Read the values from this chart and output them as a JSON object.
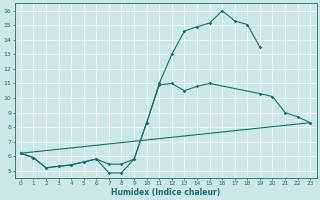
{
  "xlabel": "Humidex (Indice chaleur)",
  "bg_color": "#cce8e5",
  "line_color": "#1e6b6b",
  "grid_color": "#ffffff",
  "line1_x": [
    0,
    1,
    2,
    3,
    4,
    5,
    6,
    7,
    8,
    9,
    10,
    11,
    12,
    13,
    14,
    15,
    16,
    17,
    18,
    19
  ],
  "line1_y": [
    6.2,
    5.9,
    5.2,
    5.3,
    5.4,
    5.6,
    5.8,
    4.85,
    4.85,
    5.8,
    8.3,
    11.0,
    13.0,
    14.6,
    14.9,
    15.15,
    16.0,
    15.3,
    15.05,
    13.5
  ],
  "line2_x": [
    0,
    1,
    2,
    3,
    4,
    5,
    6,
    7,
    8,
    9,
    10,
    11,
    12,
    13,
    14,
    15,
    19,
    20,
    21,
    22,
    23
  ],
  "line2_y": [
    6.2,
    5.9,
    5.2,
    5.3,
    5.4,
    5.6,
    5.8,
    5.45,
    5.45,
    5.8,
    8.3,
    10.9,
    11.0,
    10.5,
    10.8,
    11.0,
    10.3,
    10.1,
    9.0,
    8.7,
    8.3
  ],
  "line3_x": [
    0,
    23
  ],
  "line3_y": [
    6.2,
    8.3
  ],
  "xlim": [
    -0.5,
    23.5
  ],
  "ylim": [
    4.5,
    16.5
  ],
  "yticks": [
    5,
    6,
    7,
    8,
    9,
    10,
    11,
    12,
    13,
    14,
    15,
    16
  ],
  "xticks": [
    0,
    1,
    2,
    3,
    4,
    5,
    6,
    7,
    8,
    9,
    10,
    11,
    12,
    13,
    14,
    15,
    16,
    17,
    18,
    19,
    20,
    21,
    22,
    23
  ],
  "figsize": [
    3.2,
    2.0
  ],
  "dpi": 100
}
